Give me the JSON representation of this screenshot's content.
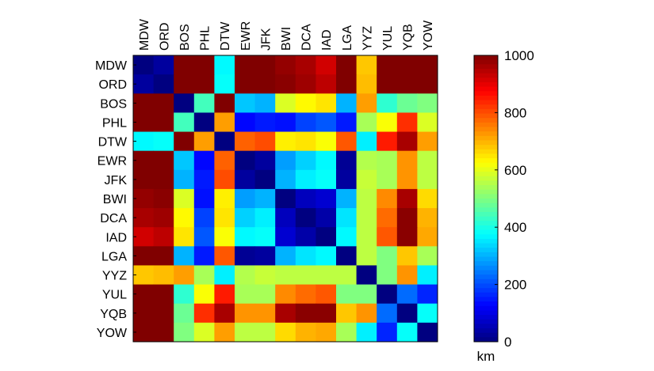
{
  "chart_data": {
    "type": "heatmap",
    "title": "",
    "labels": [
      "MDW",
      "ORD",
      "BOS",
      "PHL",
      "DTW",
      "EWR",
      "JFK",
      "BWI",
      "DCA",
      "IAD",
      "LGA",
      "YYZ",
      "YUL",
      "YQB",
      "YOW"
    ],
    "values": [
      [
        0,
        30,
        1000,
        1000,
        370,
        1000,
        1000,
        980,
        960,
        920,
        1000,
        680,
        1000,
        1000,
        1000
      ],
      [
        30,
        0,
        1000,
        1000,
        380,
        1000,
        1000,
        990,
        970,
        940,
        1000,
        690,
        1000,
        1000,
        1000
      ],
      [
        1000,
        1000,
        0,
        440,
        1000,
        320,
        300,
        590,
        630,
        650,
        300,
        720,
        420,
        480,
        500
      ],
      [
        1000,
        1000,
        440,
        0,
        720,
        130,
        150,
        140,
        190,
        210,
        150,
        540,
        620,
        830,
        590
      ],
      [
        370,
        380,
        1000,
        720,
        0,
        780,
        800,
        640,
        650,
        620,
        790,
        360,
        850,
        960,
        720
      ],
      [
        1000,
        1000,
        320,
        130,
        780,
        0,
        30,
        280,
        330,
        370,
        20,
        550,
        540,
        730,
        560
      ],
      [
        1000,
        1000,
        300,
        150,
        800,
        30,
        0,
        300,
        360,
        380,
        30,
        570,
        540,
        730,
        560
      ],
      [
        980,
        990,
        590,
        140,
        640,
        280,
        300,
        0,
        60,
        80,
        300,
        560,
        740,
        960,
        660
      ],
      [
        960,
        970,
        630,
        190,
        650,
        330,
        360,
        60,
        0,
        40,
        350,
        560,
        770,
        990,
        700
      ],
      [
        920,
        940,
        650,
        210,
        620,
        370,
        380,
        80,
        40,
        0,
        370,
        560,
        790,
        990,
        710
      ],
      [
        1000,
        1000,
        300,
        150,
        790,
        20,
        30,
        300,
        350,
        370,
        0,
        560,
        500,
        680,
        540
      ],
      [
        680,
        690,
        720,
        540,
        360,
        550,
        570,
        560,
        560,
        560,
        560,
        0,
        500,
        730,
        360
      ],
      [
        1000,
        1000,
        420,
        620,
        850,
        540,
        540,
        740,
        770,
        790,
        500,
        500,
        0,
        230,
        160
      ],
      [
        1000,
        1000,
        480,
        830,
        960,
        730,
        730,
        960,
        990,
        990,
        680,
        730,
        230,
        0,
        380
      ],
      [
        1000,
        1000,
        500,
        590,
        720,
        560,
        560,
        660,
        700,
        710,
        540,
        360,
        160,
        380,
        0
      ]
    ],
    "colormap": "jet",
    "clim": [
      0,
      1000
    ],
    "colorbar": {
      "ticks": [
        0,
        200,
        400,
        600,
        800,
        1000
      ],
      "tick_labels": [
        "0",
        "200",
        "400",
        "600",
        "800",
        "1000"
      ],
      "label": "km"
    }
  }
}
